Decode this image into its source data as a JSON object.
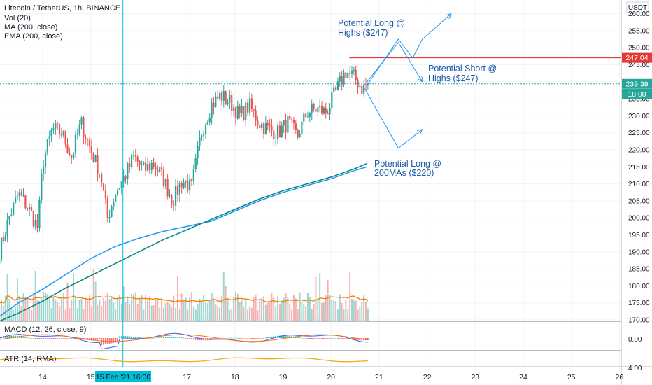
{
  "header": {
    "title": "Litecoin / TetherUS, 1h, BINANCE",
    "indicators": [
      "Vol (20)",
      "MA (200, close)",
      "EMA (200, close)"
    ]
  },
  "currency": "USDT",
  "colors": {
    "up": "#26a69a",
    "down": "#ef5350",
    "ma": "#2196f3",
    "ema": "#00897b",
    "vol_ma": "#f57c00",
    "annotation": "#1e5aa8",
    "crosshair": "#00bcd4",
    "resistance": "#e53935",
    "atr": "#f9a825",
    "macd": "#2962ff",
    "signal": "#ff6d00"
  },
  "price_marks": {
    "resistance": "247.04",
    "last": "239.39",
    "countdown": "18:00"
  },
  "crosshair_label": "15 Feb '21   16:00",
  "annotations": [
    {
      "line1": "Potential Long @",
      "line2": "Highs ($247)"
    },
    {
      "line1": "Potential Short @",
      "line2": "Highs ($247)"
    },
    {
      "line1": "Potential Long @",
      "line2": "200MAs ($220)"
    }
  ],
  "macd": {
    "label": "MACD (12, 26, close, 9)",
    "ticks": [
      "0.00"
    ]
  },
  "atr": {
    "label": "ATR (14, RMA)",
    "ticks": [
      "4.00"
    ]
  },
  "chart_data": {
    "type": "line",
    "title": "Litecoin / TetherUS, 1h, BINANCE",
    "xlabel": "",
    "ylabel": "",
    "ylim": [
      167.5,
      262.5
    ],
    "y_ticks": [
      170,
      175,
      180,
      185,
      190,
      195,
      200,
      205,
      210,
      215,
      220,
      225,
      230,
      235,
      240,
      245,
      250,
      255,
      260
    ],
    "x_ticks": [
      {
        "day": 14,
        "label": "14"
      },
      {
        "day": 15,
        "label": "15"
      },
      {
        "day": 17,
        "label": "17"
      },
      {
        "day": 18,
        "label": "18"
      },
      {
        "day": 19,
        "label": "19"
      },
      {
        "day": 20,
        "label": "20"
      },
      {
        "day": 21,
        "label": "21"
      },
      {
        "day": 22,
        "label": "22"
      },
      {
        "day": 23,
        "label": "23"
      },
      {
        "day": 24,
        "label": "24"
      },
      {
        "day": 25,
        "label": "25"
      },
      {
        "day": 26,
        "label": "26"
      }
    ],
    "series": [
      {
        "name": "LTCUSDT close",
        "x": [
          13.1,
          13.3,
          13.5,
          13.7,
          13.9,
          14.0,
          14.2,
          14.4,
          14.6,
          14.8,
          15.0,
          15.2,
          15.35,
          15.5,
          15.7,
          15.9,
          16.1,
          16.3,
          16.5,
          16.7,
          16.9,
          17.1,
          17.3,
          17.5,
          17.7,
          17.9,
          18.1,
          18.3,
          18.5,
          18.7,
          18.9,
          19.1,
          19.3,
          19.5,
          19.7,
          19.9,
          20.1,
          20.3,
          20.5,
          20.65,
          20.75
        ],
        "y": [
          190,
          200,
          207,
          203,
          197,
          216,
          226,
          225,
          218,
          228,
          220,
          213,
          200,
          207,
          212,
          218,
          214,
          216,
          212,
          205,
          211,
          209,
          225,
          233,
          236,
          234,
          230,
          233,
          228,
          226,
          225,
          228,
          224,
          231,
          232,
          231,
          237,
          243,
          241,
          238,
          239.39
        ]
      },
      {
        "name": "MA (200, close)",
        "x": [
          13.0,
          13.5,
          14.0,
          14.5,
          15.0,
          15.5,
          16.0,
          16.5,
          17.0,
          17.5,
          18.0,
          18.5,
          19.0,
          19.5,
          20.0,
          20.5,
          20.75
        ],
        "y": [
          170,
          175,
          179,
          183.5,
          188,
          191.5,
          194,
          196,
          197.5,
          199,
          202,
          205,
          207.5,
          209.5,
          211.5,
          214,
          215
        ]
      },
      {
        "name": "EMA (200, close)",
        "x": [
          13.0,
          13.5,
          14.0,
          14.5,
          15.0,
          15.5,
          16.0,
          16.5,
          17.0,
          17.5,
          18.0,
          18.5,
          19.0,
          19.5,
          20.0,
          20.5,
          20.75
        ],
        "y": [
          169,
          172,
          175.5,
          179.5,
          183,
          186.5,
          190,
          193.5,
          196.5,
          199.5,
          202.5,
          205.5,
          208,
          210,
          212,
          214.5,
          216
        ]
      }
    ],
    "projections": [
      {
        "x": [
          20.75,
          21.4,
          21.7,
          21.9,
          22.5
        ],
        "y": [
          239,
          252.5,
          247,
          252.5,
          260
        ]
      },
      {
        "x": [
          20.75,
          21.4,
          21.9
        ],
        "y": [
          240,
          251.5,
          240
        ]
      },
      {
        "x": [
          20.7,
          21.4,
          21.9
        ],
        "y": [
          238,
          220.5,
          226
        ]
      }
    ],
    "resistance_level": 247.04,
    "last_price": 239.39,
    "legend": "top-left"
  }
}
